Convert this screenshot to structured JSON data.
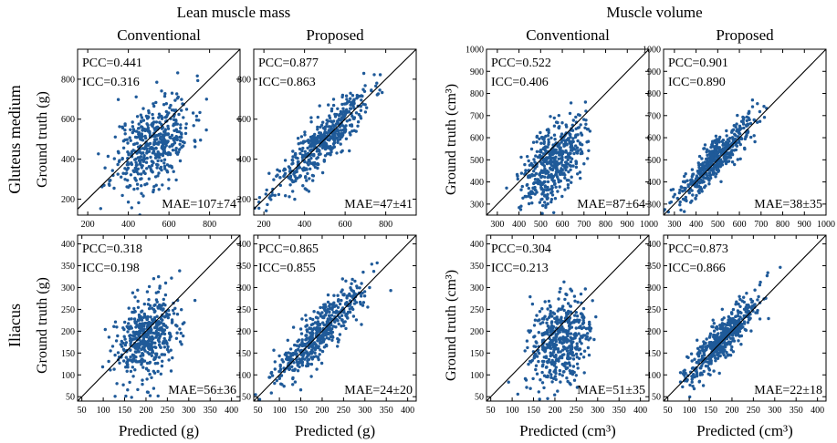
{
  "figure": {
    "group_titles": [
      "Lean muscle mass",
      "Muscle volume"
    ],
    "column_titles": [
      "Conventional",
      "Proposed",
      "Conventional",
      "Proposed"
    ],
    "row_titles": [
      "Gluteus medium",
      "Iliacus"
    ],
    "ylabels": [
      "Ground truth (g)",
      "Ground truth (g)",
      "Ground truth (cm³)",
      "Ground truth (cm³)"
    ],
    "xlabels": [
      "Predicted (g)",
      "Predicted (g)",
      "Predicted (cm³)",
      "Predicted (cm³)"
    ],
    "point_color": "#1f5a99"
  },
  "chart_data": [
    {
      "type": "scatter",
      "row": 0,
      "col": 0,
      "pcc": "PCC=0.441",
      "icc": "ICC=0.316",
      "mae": "MAE=107±74",
      "xlim": [
        150,
        950
      ],
      "ylim": [
        120,
        950
      ],
      "xticks": [
        200,
        400,
        600,
        800
      ],
      "yticks": [
        200,
        400,
        600,
        800
      ],
      "cloud": {
        "n": 480,
        "mx": 520,
        "sx": 95,
        "my": 480,
        "sy": 120,
        "r": 0.441,
        "seed": 11
      }
    },
    {
      "type": "scatter",
      "row": 0,
      "col": 1,
      "pcc": "PCC=0.877",
      "icc": "ICC=0.863",
      "mae": "MAE=47±41",
      "xlim": [
        150,
        950
      ],
      "ylim": [
        120,
        950
      ],
      "xticks": [
        200,
        400,
        600,
        800
      ],
      "yticks": [
        200,
        400,
        600,
        800
      ],
      "cloud": {
        "n": 480,
        "mx": 480,
        "sx": 120,
        "my": 480,
        "sy": 130,
        "r": 0.877,
        "seed": 23
      }
    },
    {
      "type": "scatter",
      "row": 0,
      "col": 2,
      "pcc": "PCC=0.522",
      "icc": "ICC=0.406",
      "mae": "MAE=87±64",
      "xlim": [
        250,
        1000
      ],
      "ylim": [
        250,
        1000
      ],
      "xticks": [
        300,
        400,
        500,
        600,
        700,
        800,
        900,
        1000
      ],
      "yticks": [
        300,
        400,
        500,
        600,
        700,
        800,
        900,
        1000
      ],
      "cloud": {
        "n": 480,
        "mx": 560,
        "sx": 70,
        "my": 500,
        "sy": 100,
        "r": 0.522,
        "seed": 37
      }
    },
    {
      "type": "scatter",
      "row": 0,
      "col": 3,
      "pcc": "PCC=0.901",
      "icc": "ICC=0.890",
      "mae": "MAE=38±35",
      "xlim": [
        250,
        1000
      ],
      "ylim": [
        250,
        1000
      ],
      "xticks": [
        300,
        400,
        500,
        600,
        700,
        800,
        900,
        1000
      ],
      "yticks": [
        300,
        400,
        500,
        600,
        700,
        800,
        900,
        1000
      ],
      "cloud": {
        "n": 480,
        "mx": 490,
        "sx": 90,
        "my": 500,
        "sy": 100,
        "r": 0.901,
        "seed": 41
      }
    },
    {
      "type": "scatter",
      "row": 1,
      "col": 0,
      "pcc": "PCC=0.318",
      "icc": "ICC=0.198",
      "mae": "MAE=56±36",
      "xlim": [
        40,
        420
      ],
      "ylim": [
        40,
        420
      ],
      "xticks": [
        50,
        100,
        150,
        200,
        250,
        300,
        350,
        400
      ],
      "yticks": [
        50,
        100,
        150,
        200,
        250,
        300,
        350,
        400
      ],
      "cloud": {
        "n": 480,
        "mx": 205,
        "sx": 40,
        "my": 185,
        "sy": 50,
        "r": 0.318,
        "seed": 53
      }
    },
    {
      "type": "scatter",
      "row": 1,
      "col": 1,
      "pcc": "PCC=0.865",
      "icc": "ICC=0.855",
      "mae": "MAE=24±20",
      "xlim": [
        40,
        420
      ],
      "ylim": [
        40,
        420
      ],
      "xticks": [
        50,
        100,
        150,
        200,
        250,
        300,
        350,
        400
      ],
      "yticks": [
        50,
        100,
        150,
        200,
        250,
        300,
        350,
        400
      ],
      "cloud": {
        "n": 480,
        "mx": 190,
        "sx": 50,
        "my": 190,
        "sy": 55,
        "r": 0.865,
        "seed": 67
      }
    },
    {
      "type": "scatter",
      "row": 1,
      "col": 2,
      "pcc": "PCC=0.304",
      "icc": "ICC=0.213",
      "mae": "MAE=51±35",
      "xlim": [
        40,
        420
      ],
      "ylim": [
        40,
        420
      ],
      "xticks": [
        50,
        100,
        150,
        200,
        250,
        300,
        350,
        400
      ],
      "yticks": [
        50,
        100,
        150,
        200,
        250,
        300,
        350,
        400
      ],
      "cloud": {
        "n": 480,
        "mx": 210,
        "sx": 38,
        "my": 180,
        "sy": 50,
        "r": 0.304,
        "seed": 79
      }
    },
    {
      "type": "scatter",
      "row": 1,
      "col": 3,
      "pcc": "PCC=0.873",
      "icc": "ICC=0.866",
      "mae": "MAE=22±18",
      "xlim": [
        40,
        420
      ],
      "ylim": [
        40,
        420
      ],
      "xticks": [
        50,
        100,
        150,
        200,
        250,
        300,
        350,
        400
      ],
      "yticks": [
        50,
        100,
        150,
        200,
        250,
        300,
        350,
        400
      ],
      "cloud": {
        "n": 480,
        "mx": 175,
        "sx": 45,
        "my": 180,
        "sy": 50,
        "r": 0.873,
        "seed": 97
      }
    }
  ]
}
